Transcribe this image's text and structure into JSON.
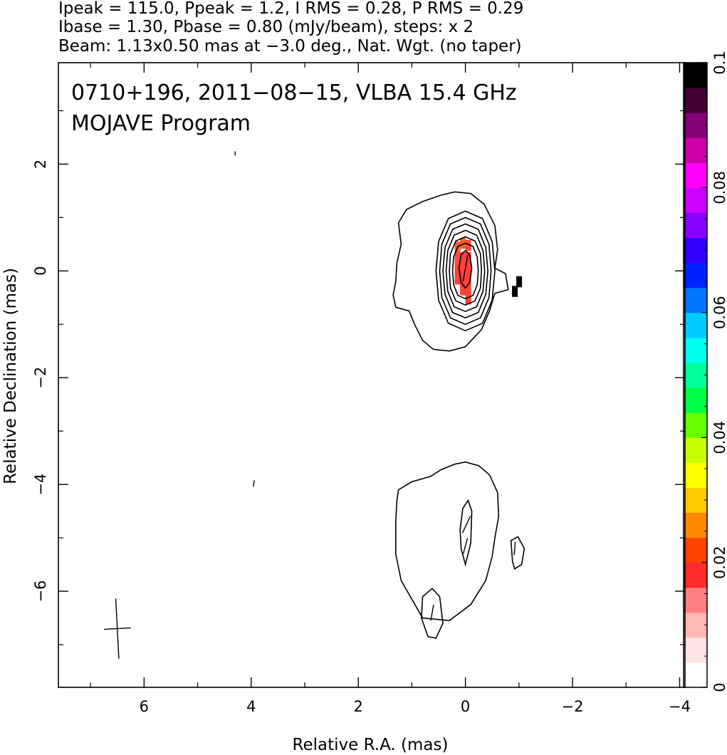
{
  "header": {
    "line1": "Ipeak = 115.0, Ppeak = 1.2, I RMS = 0.28, P RMS = 0.29",
    "line2": "Ibase = 1.30, Pbase = 0.80 (mJy/beam), steps: x 2",
    "line3": "Beam: 1.13x0.50 mas at −3.0 deg., Nat. Wgt. (no taper)"
  },
  "chart_data": {
    "type": "heatmap",
    "title": "0710+196, 2011−08−15, VLBA 15.4 GHz",
    "subtitle": "MOJAVE Program",
    "xlabel": "Relative R.A. (mas)",
    "ylabel": "Relative Declination (mas)",
    "xlim": [
      7.6,
      -4.1
    ],
    "ylim": [
      -7.8,
      3.9
    ],
    "x_ticks": [
      "6",
      "4",
      "2",
      "0",
      "−2",
      "−4"
    ],
    "x_tick_values": [
      6,
      4,
      2,
      0,
      -2,
      -4
    ],
    "y_ticks": [
      "−6",
      "−4",
      "−2",
      "0",
      "2"
    ],
    "y_tick_values": [
      -6,
      -4,
      -2,
      0,
      2
    ],
    "colorbar": {
      "range": [
        0,
        0.1
      ],
      "ticks": [
        "0",
        "0.02",
        "0.04",
        "0.06",
        "0.08",
        "0.1"
      ],
      "tick_values": [
        0,
        0.02,
        0.04,
        0.06,
        0.08,
        0.1
      ]
    },
    "contours": [
      {
        "name": "core-outer",
        "points": [
          [
            1.2,
            0.5
          ],
          [
            1.25,
            0.9
          ],
          [
            1.1,
            1.15
          ],
          [
            0.8,
            1.3
          ],
          [
            0.45,
            1.42
          ],
          [
            0.2,
            1.48
          ],
          [
            -0.1,
            1.45
          ],
          [
            -0.35,
            1.25
          ],
          [
            -0.55,
            0.85
          ],
          [
            -0.6,
            0.4
          ],
          [
            -0.55,
            0.05
          ],
          [
            -0.75,
            -0.05
          ],
          [
            -0.8,
            -0.35
          ],
          [
            -0.55,
            -0.42
          ],
          [
            -0.45,
            -0.75
          ],
          [
            -0.3,
            -1.1
          ],
          [
            0,
            -1.42
          ],
          [
            0.3,
            -1.5
          ],
          [
            0.6,
            -1.47
          ],
          [
            0.8,
            -1.3
          ],
          [
            0.95,
            -1.0
          ],
          [
            1.05,
            -0.75
          ],
          [
            1.3,
            -0.68
          ],
          [
            1.35,
            -0.45
          ],
          [
            1.3,
            -0.2
          ],
          [
            1.28,
            0.15
          ],
          [
            1.2,
            0.5
          ]
        ]
      },
      {
        "name": "core-ring-1",
        "points": [
          [
            0.55,
            0
          ],
          [
            0.5,
            0.55
          ],
          [
            0.32,
            0.98
          ],
          [
            0,
            1.12
          ],
          [
            -0.32,
            0.98
          ],
          [
            -0.5,
            0.55
          ],
          [
            -0.55,
            0
          ],
          [
            -0.5,
            -0.55
          ],
          [
            -0.32,
            -0.98
          ],
          [
            0,
            -1.12
          ],
          [
            0.32,
            -0.98
          ],
          [
            0.5,
            -0.55
          ],
          [
            0.55,
            0
          ]
        ]
      },
      {
        "name": "core-ring-2",
        "points": [
          [
            0.48,
            0
          ],
          [
            0.44,
            0.5
          ],
          [
            0.28,
            0.88
          ],
          [
            0,
            1.0
          ],
          [
            -0.28,
            0.88
          ],
          [
            -0.44,
            0.5
          ],
          [
            -0.48,
            0
          ],
          [
            -0.44,
            -0.5
          ],
          [
            -0.28,
            -0.88
          ],
          [
            0,
            -1.0
          ],
          [
            0.28,
            -0.88
          ],
          [
            0.44,
            -0.5
          ],
          [
            0.48,
            0
          ]
        ]
      },
      {
        "name": "core-ring-3",
        "points": [
          [
            0.42,
            0
          ],
          [
            0.38,
            0.44
          ],
          [
            0.24,
            0.78
          ],
          [
            0,
            0.88
          ],
          [
            -0.24,
            0.78
          ],
          [
            -0.38,
            0.44
          ],
          [
            -0.42,
            0
          ],
          [
            -0.38,
            -0.44
          ],
          [
            -0.24,
            -0.78
          ],
          [
            0,
            -0.88
          ],
          [
            0.24,
            -0.78
          ],
          [
            0.38,
            -0.44
          ],
          [
            0.42,
            0
          ]
        ]
      },
      {
        "name": "core-ring-4",
        "points": [
          [
            0.36,
            0
          ],
          [
            0.33,
            0.38
          ],
          [
            0.21,
            0.67
          ],
          [
            0,
            0.76
          ],
          [
            -0.21,
            0.67
          ],
          [
            -0.33,
            0.38
          ],
          [
            -0.36,
            0
          ],
          [
            -0.33,
            -0.38
          ],
          [
            -0.21,
            -0.67
          ],
          [
            0,
            -0.76
          ],
          [
            0.21,
            -0.67
          ],
          [
            0.33,
            -0.38
          ],
          [
            0.36,
            0
          ]
        ]
      },
      {
        "name": "core-ring-5",
        "points": [
          [
            0.3,
            0
          ],
          [
            0.28,
            0.32
          ],
          [
            0.18,
            0.56
          ],
          [
            0,
            0.64
          ],
          [
            -0.18,
            0.56
          ],
          [
            -0.28,
            0.32
          ],
          [
            -0.3,
            0
          ],
          [
            -0.28,
            -0.32
          ],
          [
            -0.18,
            -0.56
          ],
          [
            0,
            -0.64
          ],
          [
            0.18,
            -0.56
          ],
          [
            0.28,
            -0.32
          ],
          [
            0.3,
            0
          ]
        ]
      },
      {
        "name": "core-ring-6",
        "points": [
          [
            0.24,
            0
          ],
          [
            0.22,
            0.26
          ],
          [
            0.14,
            0.46
          ],
          [
            0,
            0.52
          ],
          [
            -0.14,
            0.46
          ],
          [
            -0.22,
            0.26
          ],
          [
            -0.24,
            0
          ],
          [
            -0.22,
            -0.26
          ],
          [
            -0.14,
            -0.46
          ],
          [
            0,
            -0.52
          ],
          [
            0.14,
            -0.46
          ],
          [
            0.22,
            -0.26
          ],
          [
            0.24,
            0
          ]
        ]
      },
      {
        "name": "core-inner",
        "points": [
          [
            0.12,
            0.05
          ],
          [
            0.08,
            0.3
          ],
          [
            0,
            0.38
          ],
          [
            -0.08,
            0.3
          ],
          [
            -0.12,
            0.05
          ],
          [
            -0.08,
            -0.22
          ],
          [
            0,
            -0.32
          ],
          [
            0.08,
            -0.22
          ],
          [
            0.12,
            0.05
          ]
        ]
      },
      {
        "name": "jet-outer",
        "points": [
          [
            1.25,
            -4.1
          ],
          [
            1.0,
            -3.95
          ],
          [
            0.65,
            -3.85
          ],
          [
            0.45,
            -3.72
          ],
          [
            0.2,
            -3.62
          ],
          [
            0,
            -3.58
          ],
          [
            -0.25,
            -3.65
          ],
          [
            -0.45,
            -3.82
          ],
          [
            -0.6,
            -4.15
          ],
          [
            -0.62,
            -4.6
          ],
          [
            -0.55,
            -5.0
          ],
          [
            -0.5,
            -5.35
          ],
          [
            -0.38,
            -5.8
          ],
          [
            -0.1,
            -6.25
          ],
          [
            0.3,
            -6.55
          ],
          [
            0.8,
            -6.5
          ],
          [
            1.0,
            -6.15
          ],
          [
            1.2,
            -5.8
          ],
          [
            1.3,
            -5.3
          ],
          [
            1.3,
            -4.7
          ],
          [
            1.28,
            -4.3
          ],
          [
            1.25,
            -4.1
          ]
        ]
      },
      {
        "name": "jet-knot",
        "points": [
          [
            0.1,
            -4.85
          ],
          [
            0.05,
            -4.45
          ],
          [
            -0.05,
            -4.3
          ],
          [
            -0.12,
            -4.5
          ],
          [
            -0.1,
            -5.1
          ],
          [
            0,
            -5.5
          ],
          [
            0.08,
            -5.2
          ],
          [
            0.1,
            -4.85
          ]
        ]
      },
      {
        "name": "jet-east-blob",
        "points": [
          [
            0.42,
            -6.6
          ],
          [
            0.48,
            -6.1
          ],
          [
            0.62,
            -5.95
          ],
          [
            0.8,
            -6.1
          ],
          [
            0.82,
            -6.5
          ],
          [
            0.7,
            -6.85
          ],
          [
            0.55,
            -6.88
          ],
          [
            0.42,
            -6.6
          ]
        ]
      },
      {
        "name": "jet-west-blob",
        "points": [
          [
            -0.88,
            -5.45
          ],
          [
            -0.85,
            -5.05
          ],
          [
            -0.98,
            -4.98
          ],
          [
            -1.1,
            -5.2
          ],
          [
            -1.05,
            -5.5
          ],
          [
            -0.92,
            -5.58
          ],
          [
            -0.88,
            -5.45
          ]
        ]
      }
    ],
    "pol_pixels": [
      {
        "x": 0.15,
        "y": 0.45,
        "value": 0.015,
        "color": "#ff5a2a"
      },
      {
        "x": 0.05,
        "y": 0.52,
        "value": 0.016,
        "color": "#ff6026"
      },
      {
        "x": -0.05,
        "y": 0.48,
        "value": 0.013,
        "color": "#ff4a32"
      },
      {
        "x": 0.15,
        "y": 0.25,
        "value": 0.013,
        "color": "#ff4a32"
      },
      {
        "x": 0.05,
        "y": 0.25,
        "value": 0.012,
        "color": "#ff4235"
      },
      {
        "x": -0.05,
        "y": 0.25,
        "value": 0.012,
        "color": "#ff4235"
      },
      {
        "x": 0.15,
        "y": 0.05,
        "value": 0.012,
        "color": "#ff4235"
      },
      {
        "x": 0.05,
        "y": 0.05,
        "value": 0.011,
        "color": "#ff3e3a"
      },
      {
        "x": -0.05,
        "y": 0.05,
        "value": 0.011,
        "color": "#ff3e3a"
      },
      {
        "x": 0.15,
        "y": -0.15,
        "value": 0.012,
        "color": "#ff4235"
      },
      {
        "x": 0.05,
        "y": -0.15,
        "value": 0.011,
        "color": "#ff3e3a"
      },
      {
        "x": -0.05,
        "y": -0.15,
        "value": 0.011,
        "color": "#ff3e3a"
      },
      {
        "x": 0.05,
        "y": -0.35,
        "value": 0.012,
        "color": "#ff4235"
      },
      {
        "x": -0.05,
        "y": -0.35,
        "value": 0.012,
        "color": "#ff4235"
      },
      {
        "x": -0.05,
        "y": -0.52,
        "value": 0.011,
        "color": "#ff3e3a"
      },
      {
        "x": -1.0,
        "y": -0.2,
        "value": 0.1,
        "color": "#000000"
      },
      {
        "x": -0.92,
        "y": -0.38,
        "value": 0.1,
        "color": "#000000"
      }
    ],
    "evpa_vectors": [
      {
        "x": 0.0,
        "y": 0.05,
        "angle_deg": 10,
        "length": 0.5
      },
      {
        "x": -0.02,
        "y": -4.75,
        "angle_deg": 25,
        "length": 0.35
      },
      {
        "x": 0.0,
        "y": -5.15,
        "angle_deg": 15,
        "length": 0.3
      },
      {
        "x": 0.62,
        "y": -6.4,
        "angle_deg": 10,
        "length": 0.3
      },
      {
        "x": -0.92,
        "y": -5.2,
        "angle_deg": 5,
        "length": 0.25
      },
      {
        "x": 3.95,
        "y": -3.98,
        "angle_deg": 10,
        "length": 0.12
      },
      {
        "x": 4.3,
        "y": 2.2,
        "angle_deg": 0,
        "length": 0.08
      }
    ],
    "beam_cross": {
      "x": 6.5,
      "y": -6.7,
      "major_mas": 1.13,
      "minor_mas": 0.5,
      "pa_deg": -3.0
    },
    "colorbar_colors": [
      "#ffffff",
      "#ffe4e4",
      "#ffb8b8",
      "#ff8080",
      "#ff2a2a",
      "#ff4400",
      "#ff8800",
      "#ffcc00",
      "#ffff00",
      "#c8ff00",
      "#66ff00",
      "#00ff44",
      "#00ff99",
      "#00ffee",
      "#00ccff",
      "#0077ff",
      "#0022ff",
      "#3300ff",
      "#8800ff",
      "#cc00ff",
      "#ff00ff",
      "#cc00aa",
      "#880077",
      "#440033",
      "#000000"
    ]
  }
}
